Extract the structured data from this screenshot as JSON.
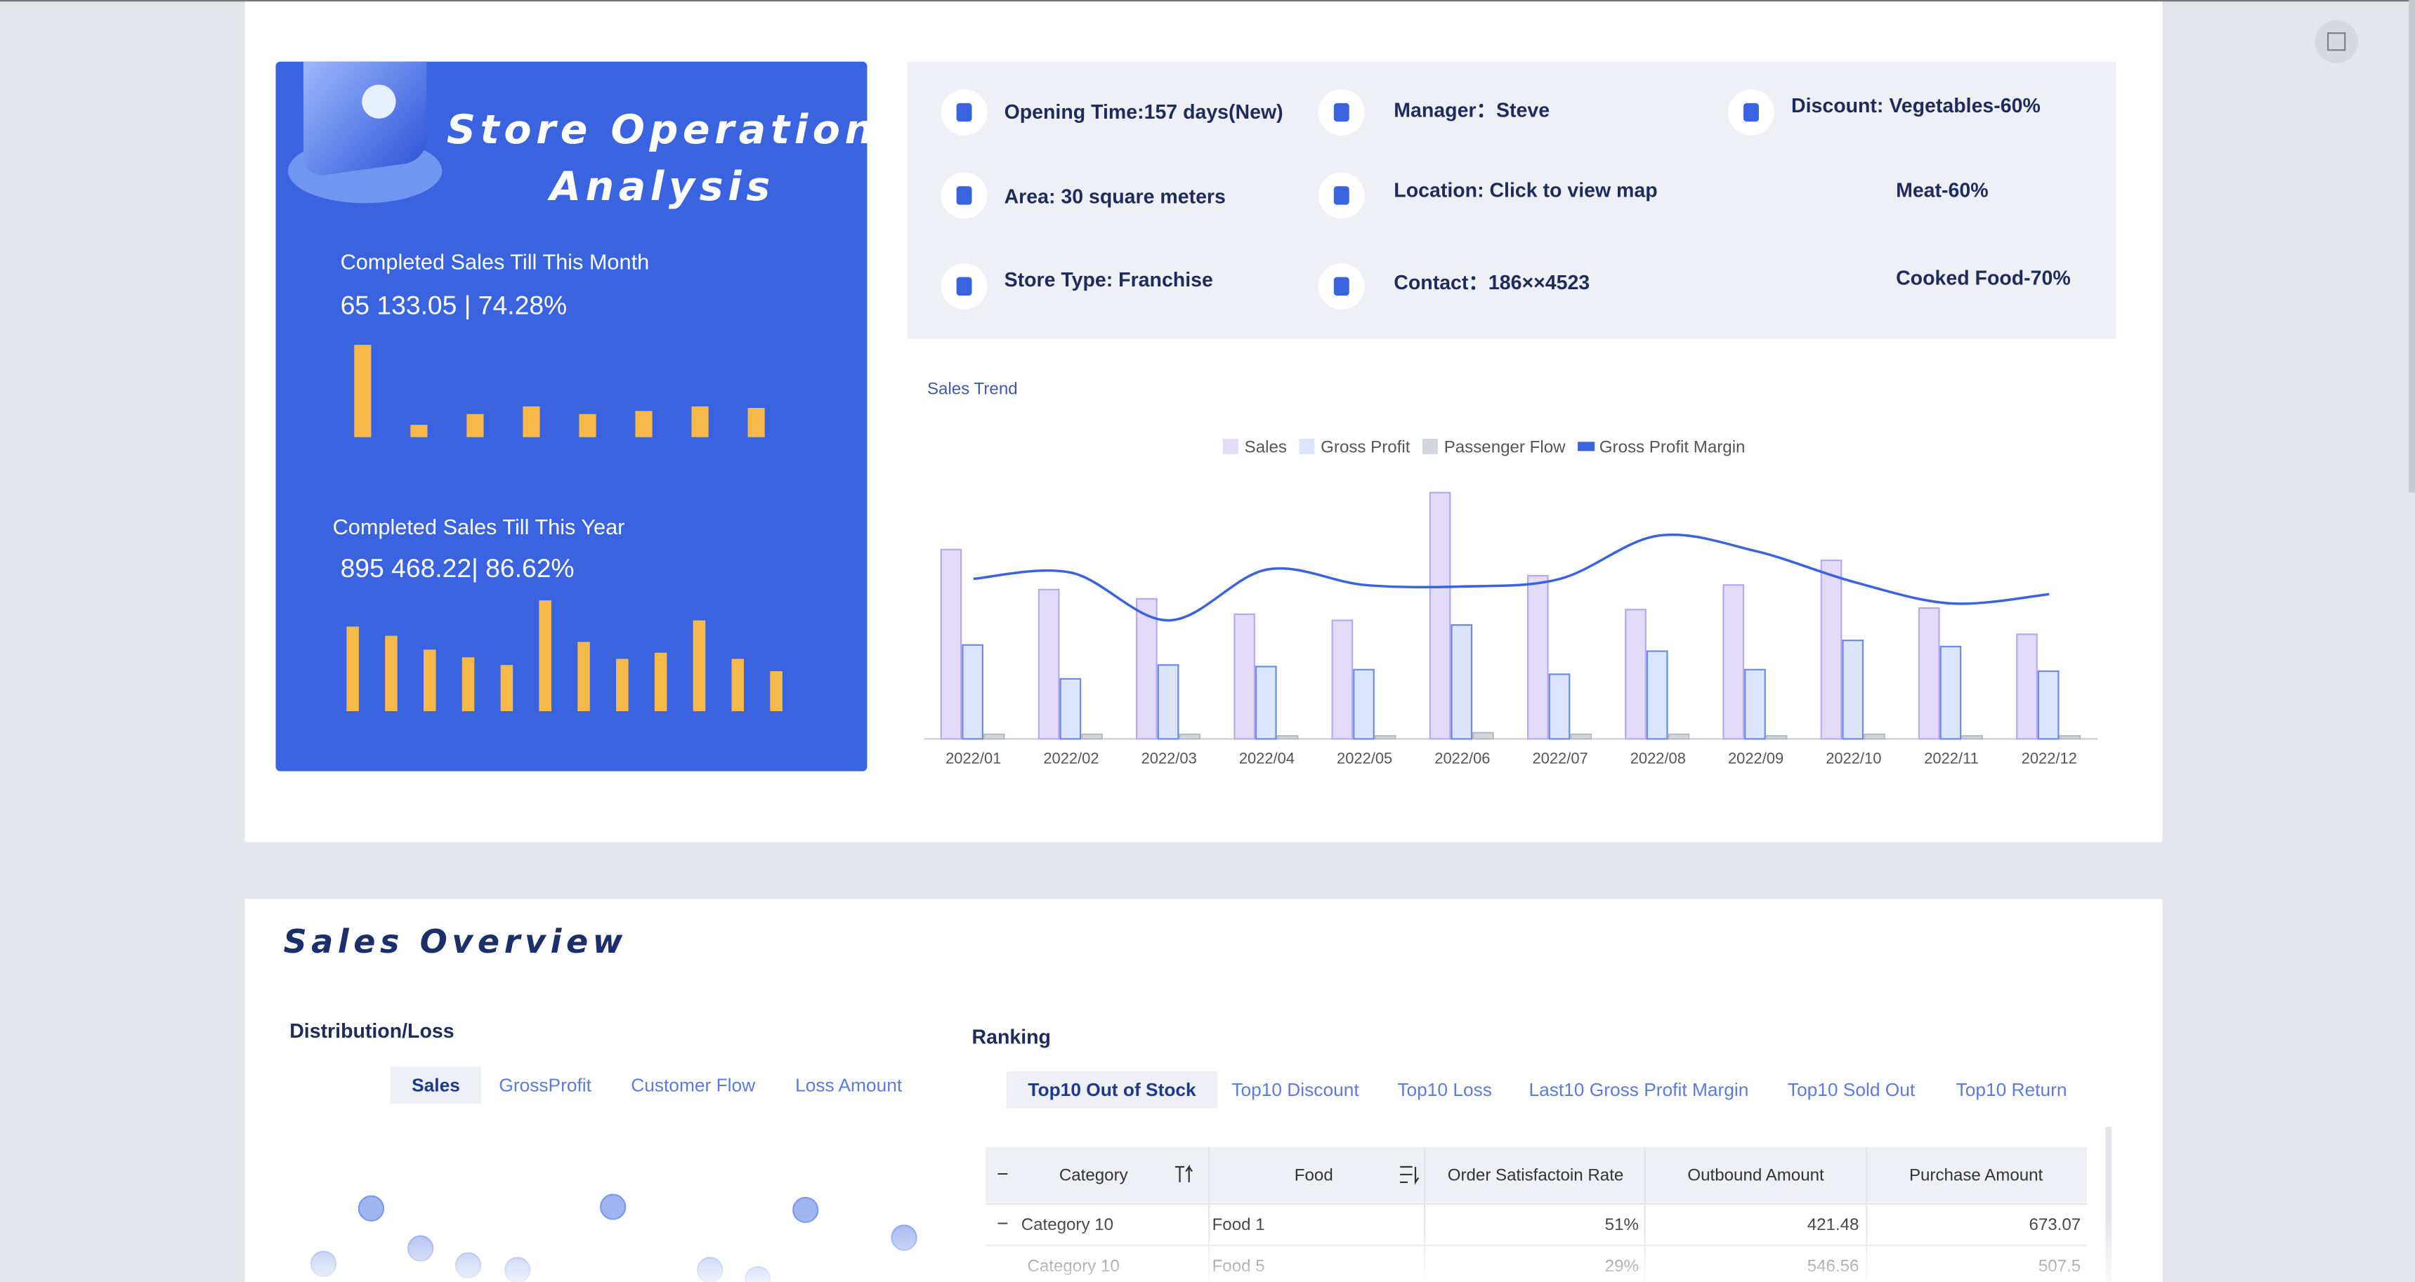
{
  "header": {
    "title_lines": [
      "Store Operation",
      "Analysis"
    ]
  },
  "month": {
    "label": "Completed Sales Till This Month",
    "value": "65 133.05 | 74.28%",
    "bars": [
      60,
      8,
      15,
      20,
      15,
      17,
      20,
      19
    ]
  },
  "year": {
    "label": "Completed Sales Till This Year",
    "value": "895 468.22| 86.62%",
    "bars": [
      55,
      49,
      40,
      35,
      30,
      72,
      45,
      34,
      38,
      59,
      34,
      26
    ]
  },
  "info": [
    [
      "Opening Time:157 days(New)",
      "Area: 30 square meters",
      "Store Type: Franchise"
    ],
    [
      "Manager：Steve",
      "Location: Click to view map",
      "Contact：186××4523"
    ],
    [
      "Discount:  Vegetables-60%",
      "Meat-60%",
      "Cooked Food-70%"
    ]
  ],
  "chart_data": {
    "type": "bar",
    "title": "Sales Trend",
    "categories": [
      "2022/01",
      "2022/02",
      "2022/03",
      "2022/04",
      "2022/05",
      "2022/06",
      "2022/07",
      "2022/08",
      "2022/09",
      "2022/10",
      "2022/11",
      "2022/12"
    ],
    "ylim": [
      0,
      170
    ],
    "series": [
      {
        "name": "Sales",
        "color": "#e3dcf8",
        "values": [
          123,
          97,
          91,
          81,
          77,
          160,
          106,
          84,
          100,
          116,
          85,
          68
        ]
      },
      {
        "name": "Gross Profit",
        "color": "#dce5fb",
        "values": [
          61,
          39,
          48,
          47,
          45,
          74,
          42,
          57,
          45,
          64,
          60,
          44
        ]
      },
      {
        "name": "Passenger Flow",
        "color": "#d3d6dc",
        "values": [
          3,
          3,
          3,
          2,
          2,
          4,
          3,
          3,
          2,
          3,
          2,
          2
        ]
      },
      {
        "name": "Gross Profit Margin",
        "color": "#3a63e0",
        "type": "line",
        "values": [
          104,
          108,
          77,
          110,
          100,
          99,
          104,
          132,
          122,
          102,
          88,
          94
        ]
      }
    ]
  },
  "overview": {
    "title": "Sales Overview",
    "distribution": {
      "title": "Distribution/Loss",
      "tabs": [
        "Sales",
        "GrossProfit",
        "Customer Flow",
        "Loss Amount"
      ],
      "scatter": {
        "type": "scatter",
        "x": [
          61,
          30,
          93,
          124,
          156,
          218,
          281,
          312,
          343,
          407
        ],
        "values": [
          55,
          19,
          29,
          18,
          15,
          56,
          15,
          9,
          54,
          36
        ]
      }
    },
    "ranking": {
      "title": "Ranking",
      "tabs": [
        "Top10 Out of Stock",
        "Top10 Discount",
        "Top10 Loss",
        "Last10 Gross Profit Margin",
        "Top10 Sold Out",
        "Top10 Return"
      ],
      "table": {
        "header": [
          "Category",
          "Food",
          "Order Satisfactoin Rate",
          "Outbound Amount",
          "Purchase Amount"
        ],
        "rows": [
          [
            "Category 10",
            "Food 1",
            "51%",
            "421.48",
            "673.07"
          ],
          [
            "Category 10",
            "Food 5",
            "29%",
            "546.56",
            "507.5"
          ]
        ]
      }
    }
  }
}
